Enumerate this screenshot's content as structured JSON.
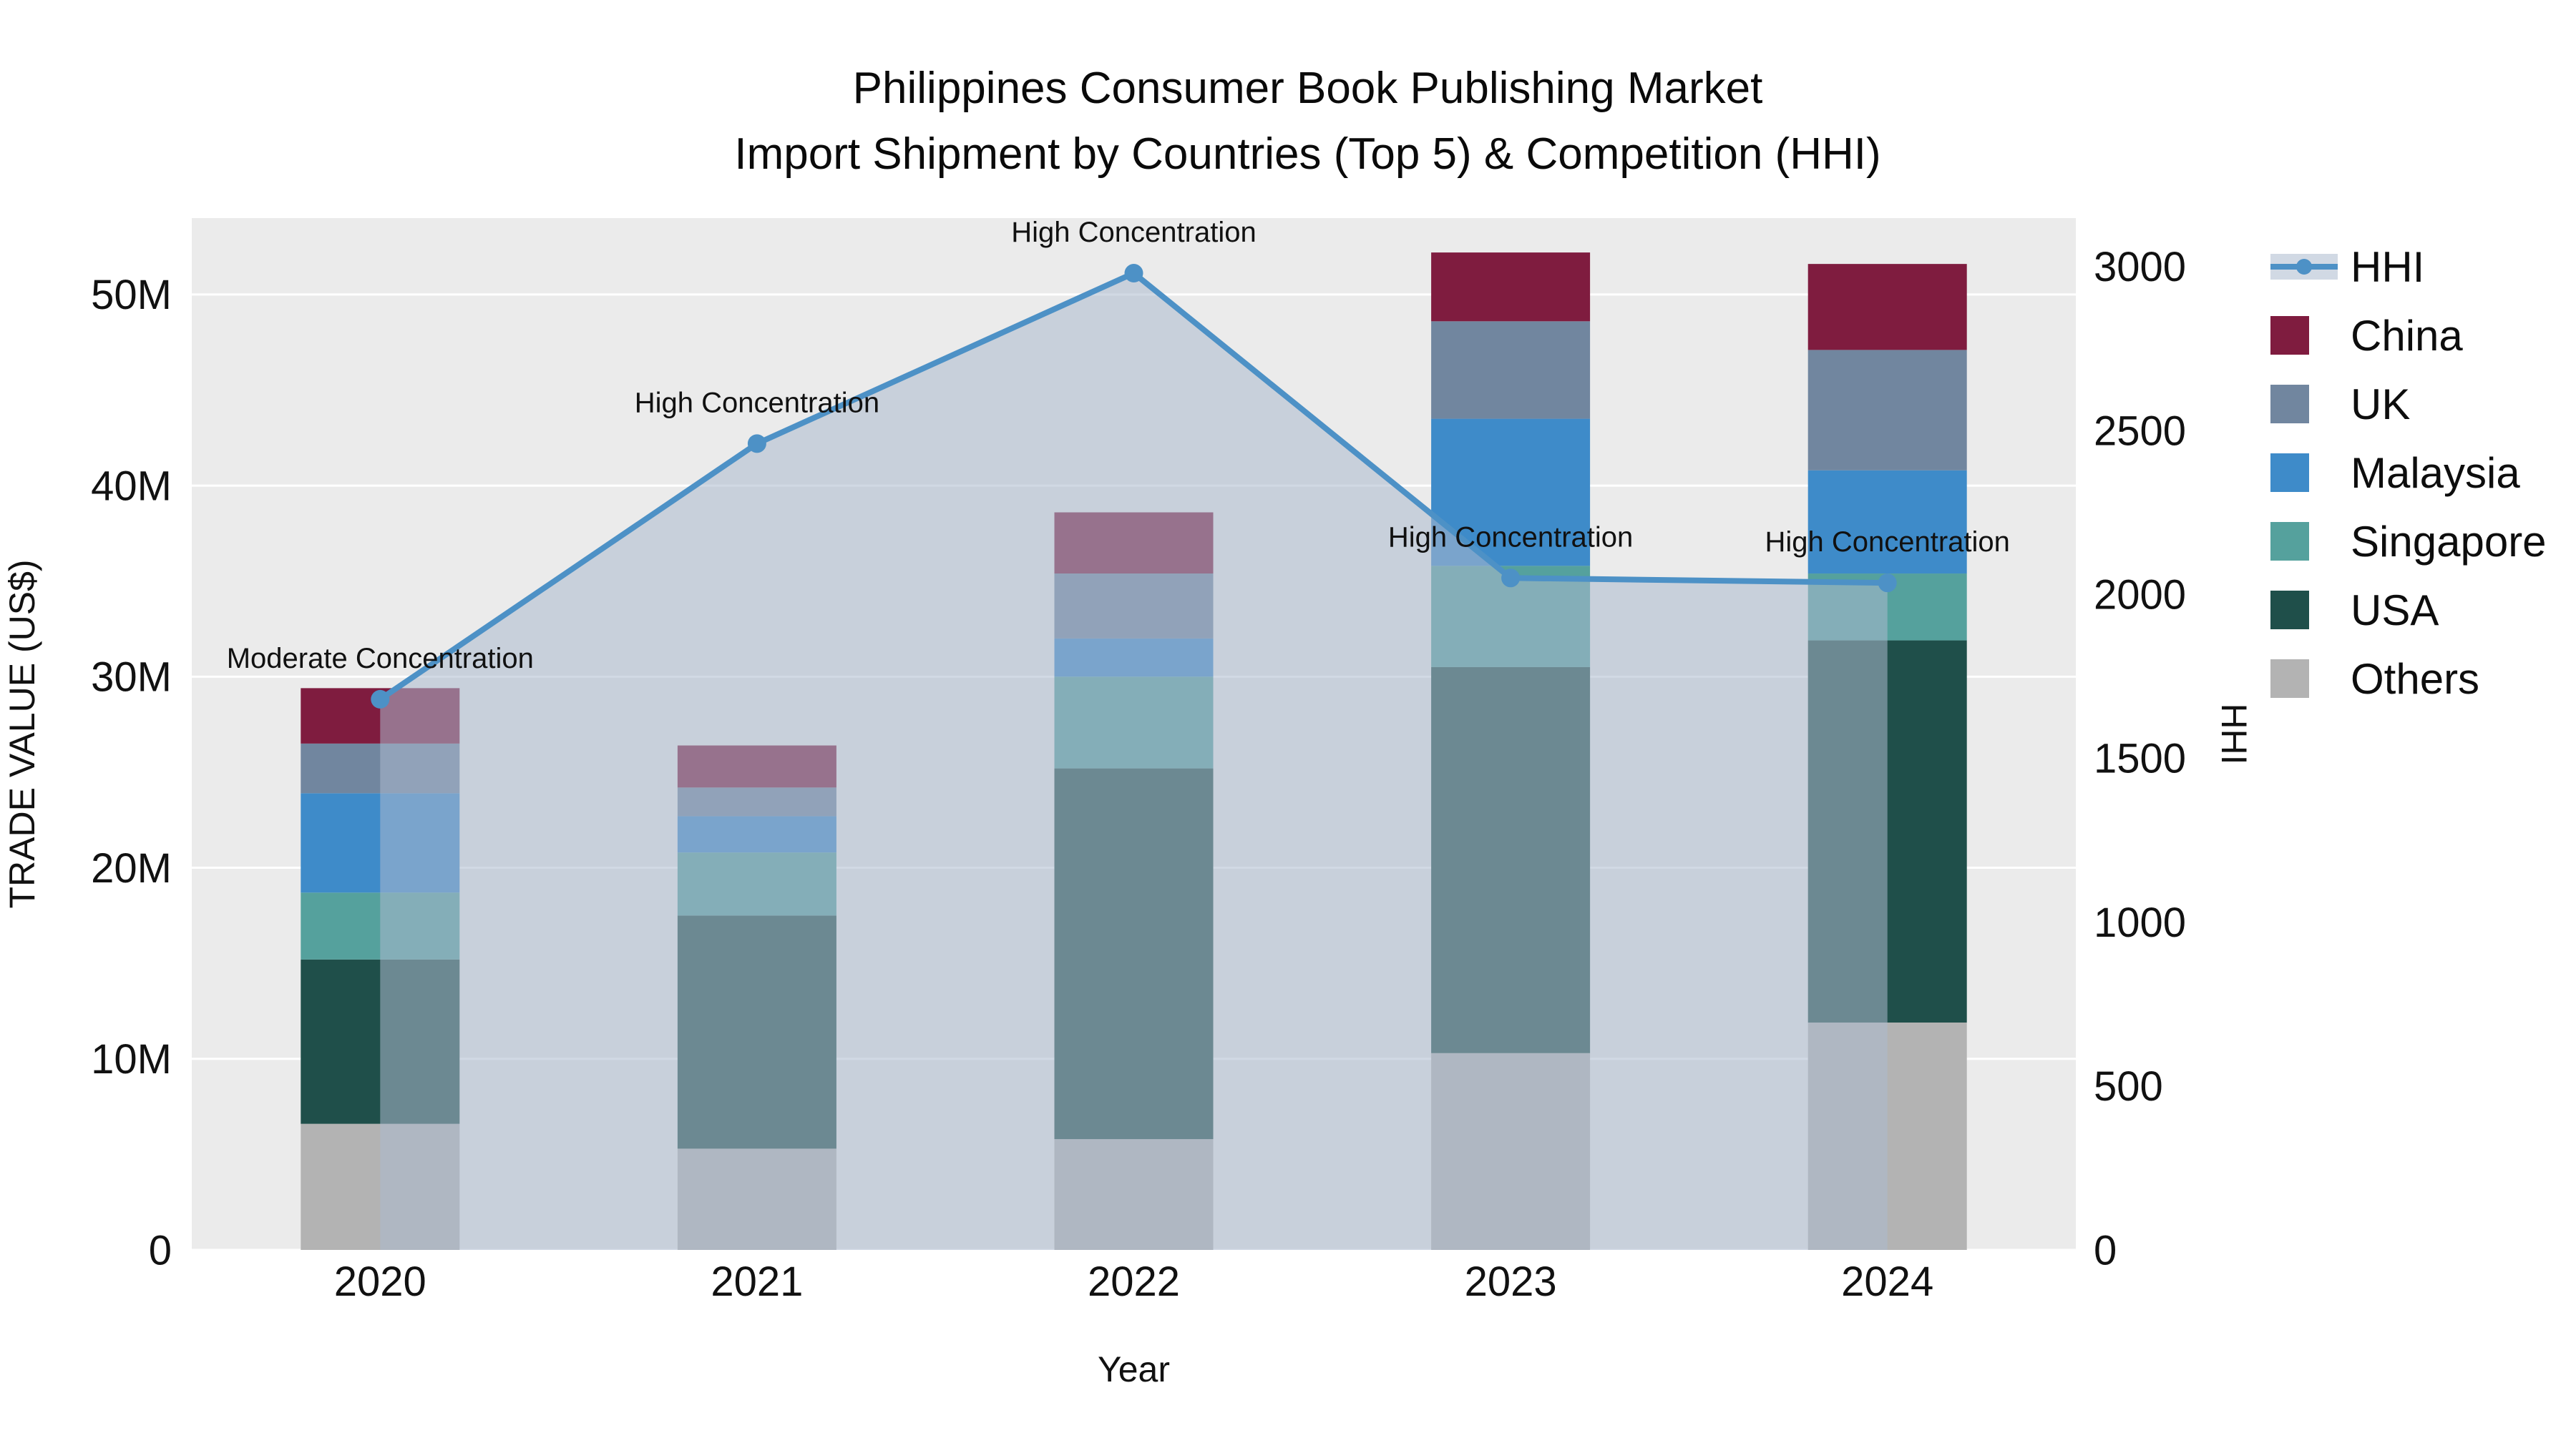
{
  "chart_data": {
    "type": "combo-stacked-bar-line",
    "title": "Philippines Consumer Book Publishing Market",
    "subtitle": "Import Shipment by Countries (Top 5) & Competition (HHI)",
    "xlabel": "Year",
    "ylabel_left": "TRADE VALUE (US$)",
    "ylabel_right": "HHI",
    "categories": [
      "2020",
      "2021",
      "2022",
      "2023",
      "2024"
    ],
    "bar_unit": "million US$",
    "bar_stack_order_bottom_to_top": [
      "Others",
      "USA",
      "Singapore",
      "Malaysia",
      "UK",
      "China"
    ],
    "bar_series": [
      {
        "name": "Others",
        "color": "#b3b3b3",
        "values": [
          6.6,
          5.3,
          5.8,
          10.3,
          11.9
        ]
      },
      {
        "name": "USA",
        "color": "#1f4f4a",
        "values": [
          8.6,
          12.2,
          19.4,
          20.2,
          20.0
        ]
      },
      {
        "name": "Singapore",
        "color": "#55a19d",
        "values": [
          3.5,
          3.3,
          4.8,
          5.3,
          3.5
        ]
      },
      {
        "name": "Malaysia",
        "color": "#3e8bc9",
        "values": [
          5.2,
          1.9,
          2.0,
          7.7,
          5.4
        ]
      },
      {
        "name": "UK",
        "color": "#71869f",
        "values": [
          2.6,
          1.5,
          3.4,
          5.1,
          6.3
        ]
      },
      {
        "name": "China",
        "color": "#7f1c3f",
        "values": [
          2.9,
          2.2,
          3.2,
          3.6,
          4.5
        ]
      }
    ],
    "bar_totals": [
      29.5,
      26.4,
      38.6,
      52.2,
      51.6
    ],
    "line_series": {
      "name": "HHI",
      "color": "#4d91c6",
      "fill": "rgba(172,186,205,0.55)",
      "values": [
        1680,
        2460,
        2980,
        2050,
        2035
      ]
    },
    "annotations": [
      {
        "x": "2020",
        "text": "Moderate Concentration"
      },
      {
        "x": "2021",
        "text": "High Concentration"
      },
      {
        "x": "2022",
        "text": "High Concentration"
      },
      {
        "x": "2023",
        "text": "High Concentration"
      },
      {
        "x": "2024",
        "text": "High Concentration"
      }
    ],
    "axes": {
      "left": {
        "ticks": [
          0,
          10,
          20,
          30,
          40,
          50
        ],
        "tick_labels": [
          "0",
          "10M",
          "20M",
          "30M",
          "40M",
          "50M"
        ],
        "max": 54
      },
      "right": {
        "ticks": [
          0,
          500,
          1000,
          1500,
          2000,
          2500,
          3000
        ],
        "tick_labels": [
          "0",
          "500",
          "1000",
          "1500",
          "2000",
          "2500",
          "3000"
        ],
        "max": 3148
      }
    },
    "legend": [
      {
        "label": "HHI",
        "type": "line"
      },
      {
        "label": "China",
        "type": "swatch",
        "color": "#7f1c3f"
      },
      {
        "label": "UK",
        "type": "swatch",
        "color": "#71869f"
      },
      {
        "label": "Malaysia",
        "type": "swatch",
        "color": "#3e8bc9"
      },
      {
        "label": "Singapore",
        "type": "swatch",
        "color": "#55a19d"
      },
      {
        "label": "USA",
        "type": "swatch",
        "color": "#1f4f4a"
      },
      {
        "label": "Others",
        "type": "swatch",
        "color": "#b3b3b3"
      }
    ],
    "plot_bg": "#ebebeb",
    "grid_color": "#ffffff",
    "text_color": "#111111"
  }
}
